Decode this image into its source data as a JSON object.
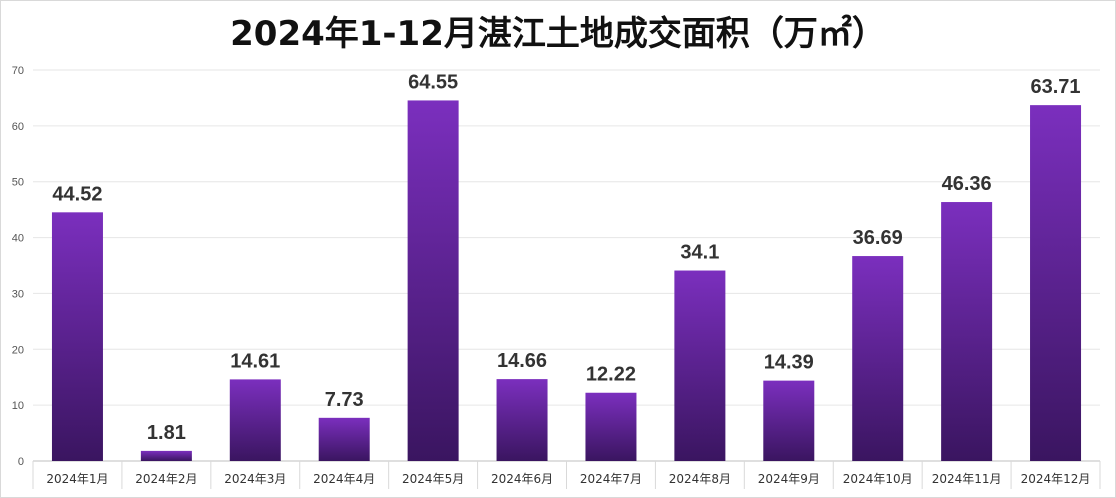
{
  "chart_data": {
    "type": "bar",
    "title": "2024年1-12月湛江土地成交面积（万㎡）",
    "categories": [
      "2024年1月",
      "2024年2月",
      "2024年3月",
      "2024年4月",
      "2024年5月",
      "2024年6月",
      "2024年7月",
      "2024年8月",
      "2024年9月",
      "2024年10月",
      "2024年11月",
      "2024年12月"
    ],
    "values": [
      44.52,
      1.81,
      14.61,
      7.73,
      64.55,
      14.66,
      12.22,
      34.1,
      14.39,
      36.69,
      46.36,
      63.71
    ],
    "data_labels": [
      "44.52",
      "1.81",
      "14.61",
      "7.73",
      "64.55",
      "14.66",
      "12.22",
      "34.1",
      "14.39",
      "36.69",
      "46.36",
      "63.71"
    ],
    "ylim": [
      0,
      70
    ],
    "yticks": [
      0,
      10,
      20,
      30,
      40,
      50,
      60,
      70
    ],
    "grid": true,
    "bar_color_top": "#7b2fbe",
    "bar_color_bottom": "#3a1560"
  }
}
